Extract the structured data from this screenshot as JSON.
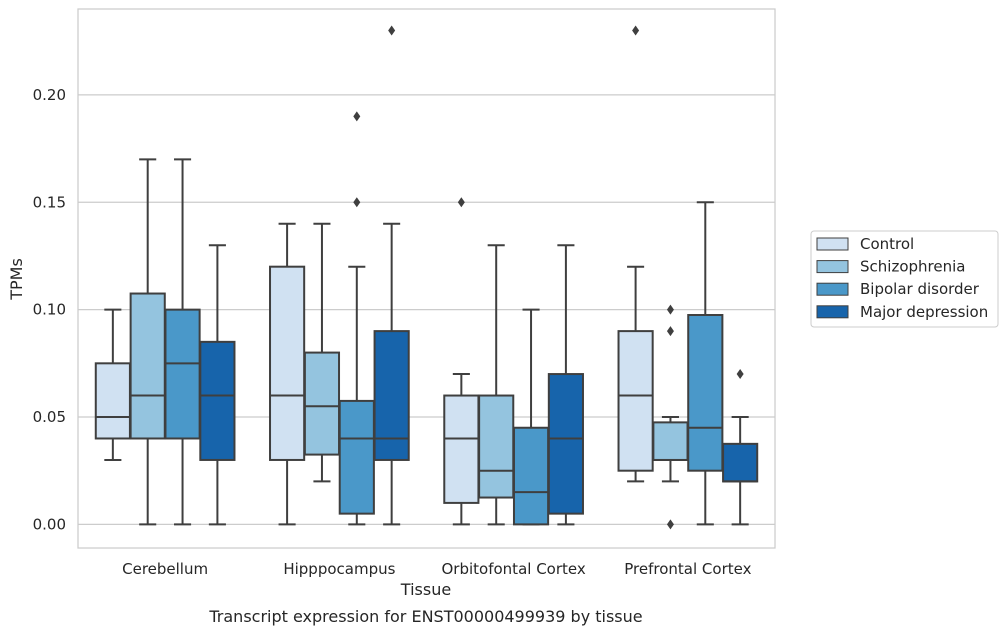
{
  "caption": "Transcript expression for ENST00000499939 by tissue",
  "chart_data": {
    "type": "box",
    "xlabel": "Tissue",
    "ylabel": "TPMs",
    "ylim": [
      -0.011,
      0.24
    ],
    "yticks": [
      0.0,
      0.05,
      0.1,
      0.15,
      0.2
    ],
    "ytick_labels": [
      "0.00",
      "0.05",
      "0.10",
      "0.15",
      "0.20"
    ],
    "grid": "horizontal",
    "legend_position": "center-right, outside plot",
    "categories": [
      "Cerebellum",
      "Hipppocampus",
      "Orbitofontal Cortex",
      "Prefrontal Cortex"
    ],
    "series": [
      {
        "name": "Control",
        "color": "#d0e1f2",
        "boxes": [
          {
            "whislo": 0.03,
            "q1": 0.04,
            "med": 0.05,
            "q3": 0.075,
            "whishi": 0.1,
            "fliers": []
          },
          {
            "whislo": 0.0,
            "q1": 0.03,
            "med": 0.06,
            "q3": 0.12,
            "whishi": 0.14,
            "fliers": []
          },
          {
            "whislo": 0.0,
            "q1": 0.01,
            "med": 0.04,
            "q3": 0.06,
            "whishi": 0.07,
            "fliers": [
              0.15
            ]
          },
          {
            "whislo": 0.02,
            "q1": 0.025,
            "med": 0.06,
            "q3": 0.09,
            "whishi": 0.12,
            "fliers": [
              0.23
            ]
          }
        ]
      },
      {
        "name": "Schizophrenia",
        "color": "#94c4df",
        "boxes": [
          {
            "whislo": 0.0,
            "q1": 0.04,
            "med": 0.06,
            "q3": 0.1075,
            "whishi": 0.17,
            "fliers": []
          },
          {
            "whislo": 0.02,
            "q1": 0.0325,
            "med": 0.055,
            "q3": 0.08,
            "whishi": 0.14,
            "fliers": []
          },
          {
            "whislo": 0.0,
            "q1": 0.0125,
            "med": 0.025,
            "q3": 0.06,
            "whishi": 0.13,
            "fliers": []
          },
          {
            "whislo": 0.02,
            "q1": 0.03,
            "med": 0.03,
            "q3": 0.0475,
            "whishi": 0.05,
            "fliers": [
              0.1,
              0.09,
              0.0
            ]
          }
        ]
      },
      {
        "name": "Bipolar disorder",
        "color": "#4a98c9",
        "boxes": [
          {
            "whislo": 0.0,
            "q1": 0.04,
            "med": 0.075,
            "q3": 0.1,
            "whishi": 0.17,
            "fliers": []
          },
          {
            "whislo": 0.0,
            "q1": 0.005,
            "med": 0.04,
            "q3": 0.0575,
            "whishi": 0.12,
            "fliers": [
              0.19,
              0.15
            ]
          },
          {
            "whislo": 0.0,
            "q1": 0.0,
            "med": 0.015,
            "q3": 0.045,
            "whishi": 0.1,
            "fliers": []
          },
          {
            "whislo": 0.0,
            "q1": 0.025,
            "med": 0.045,
            "q3": 0.0975,
            "whishi": 0.15,
            "fliers": []
          }
        ]
      },
      {
        "name": "Major depression",
        "color": "#1764ab",
        "boxes": [
          {
            "whislo": 0.0,
            "q1": 0.03,
            "med": 0.06,
            "q3": 0.085,
            "whishi": 0.13,
            "fliers": []
          },
          {
            "whislo": 0.0,
            "q1": 0.03,
            "med": 0.04,
            "q3": 0.09,
            "whishi": 0.14,
            "fliers": [
              0.23
            ]
          },
          {
            "whislo": 0.0,
            "q1": 0.005,
            "med": 0.04,
            "q3": 0.07,
            "whishi": 0.13,
            "fliers": []
          },
          {
            "whislo": 0.0,
            "q1": 0.02,
            "med": 0.02,
            "q3": 0.0375,
            "whishi": 0.05,
            "fliers": [
              0.07
            ]
          }
        ]
      }
    ]
  }
}
